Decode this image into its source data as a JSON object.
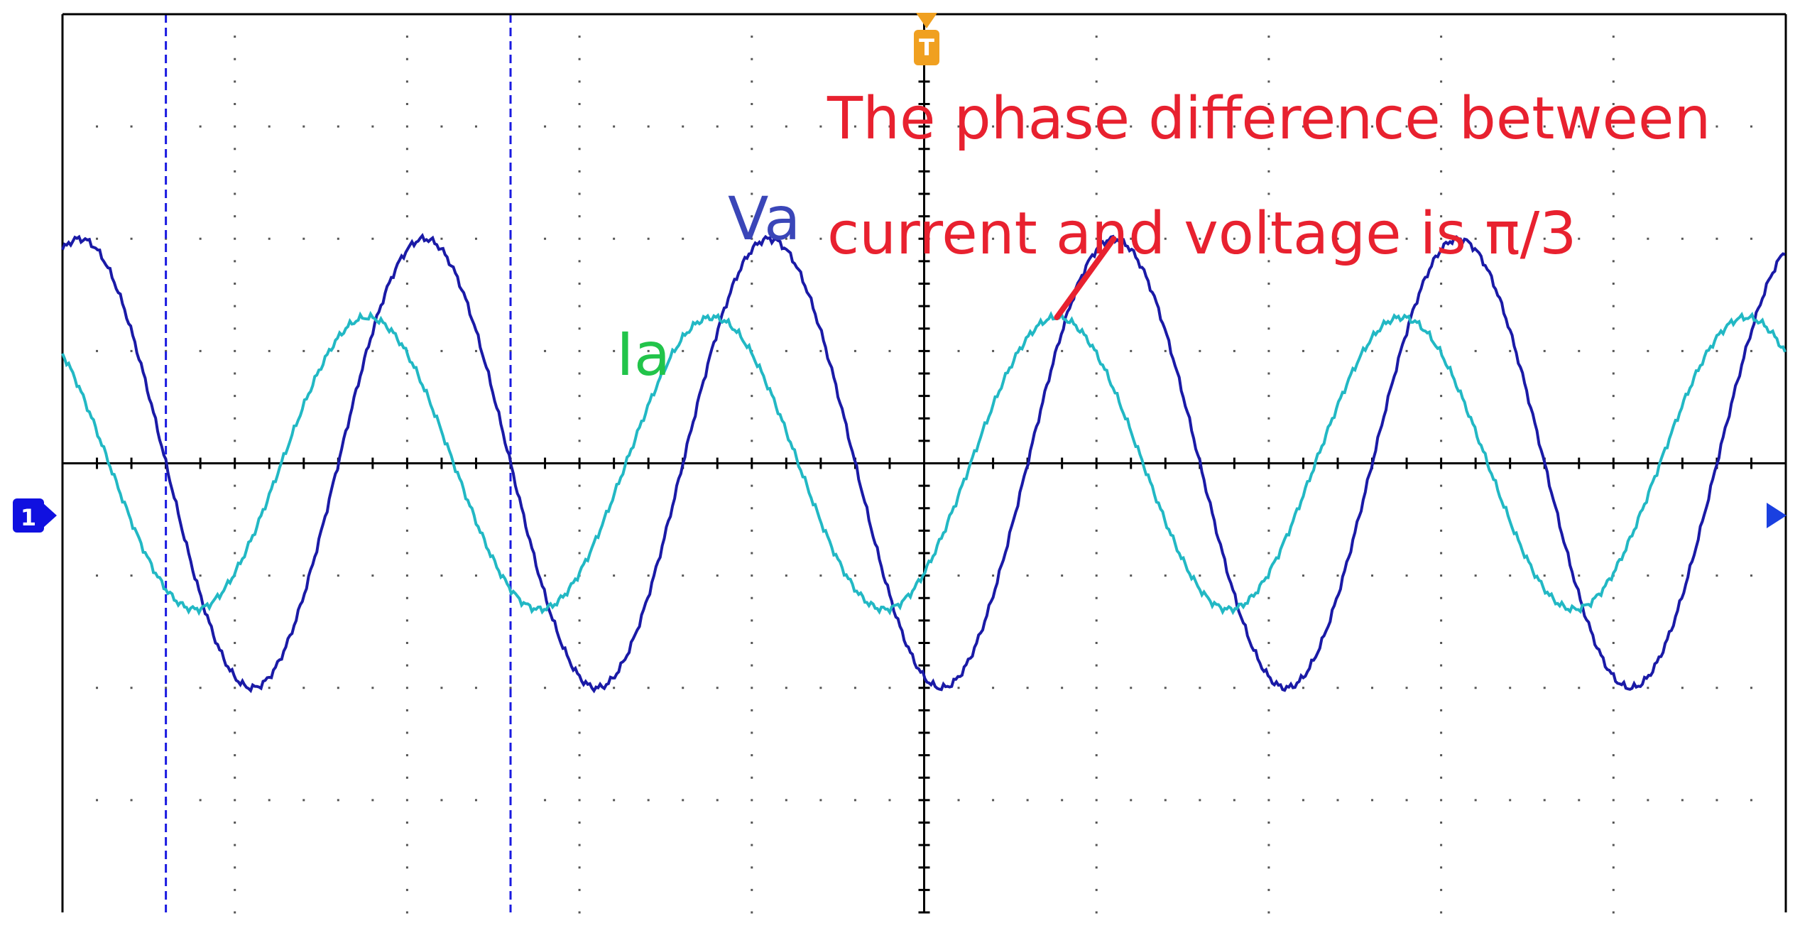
{
  "chart_data": {
    "type": "line",
    "title": "",
    "xlabel": "",
    "ylabel": "",
    "grid": true,
    "grid_divisions": {
      "x": 10,
      "y": 8
    },
    "xlim": [
      0,
      10
    ],
    "ylim": [
      -4,
      4
    ],
    "series": [
      {
        "name": "Va",
        "color": "#1a1aa6",
        "amplitude": 2.0,
        "period_div": 2.0,
        "first_peak_x": 0.1
      },
      {
        "name": "Ia",
        "color": "#22b8c4",
        "amplitude": 1.3,
        "period_div": 2.0,
        "first_peak_x": 1.77
      }
    ],
    "cursors_x": [
      0.6,
      2.6
    ],
    "trigger_marker": "T",
    "channel_marker": "1",
    "annotation": {
      "lines": [
        "The phase difference between",
        "current and voltage is π/3"
      ],
      "color": "#e8212f",
      "phase_difference": "π/3"
    },
    "series_labels": [
      {
        "text": "Va",
        "color": "#3a46b8"
      },
      {
        "text": "Ia",
        "color": "#22c44a"
      }
    ]
  }
}
